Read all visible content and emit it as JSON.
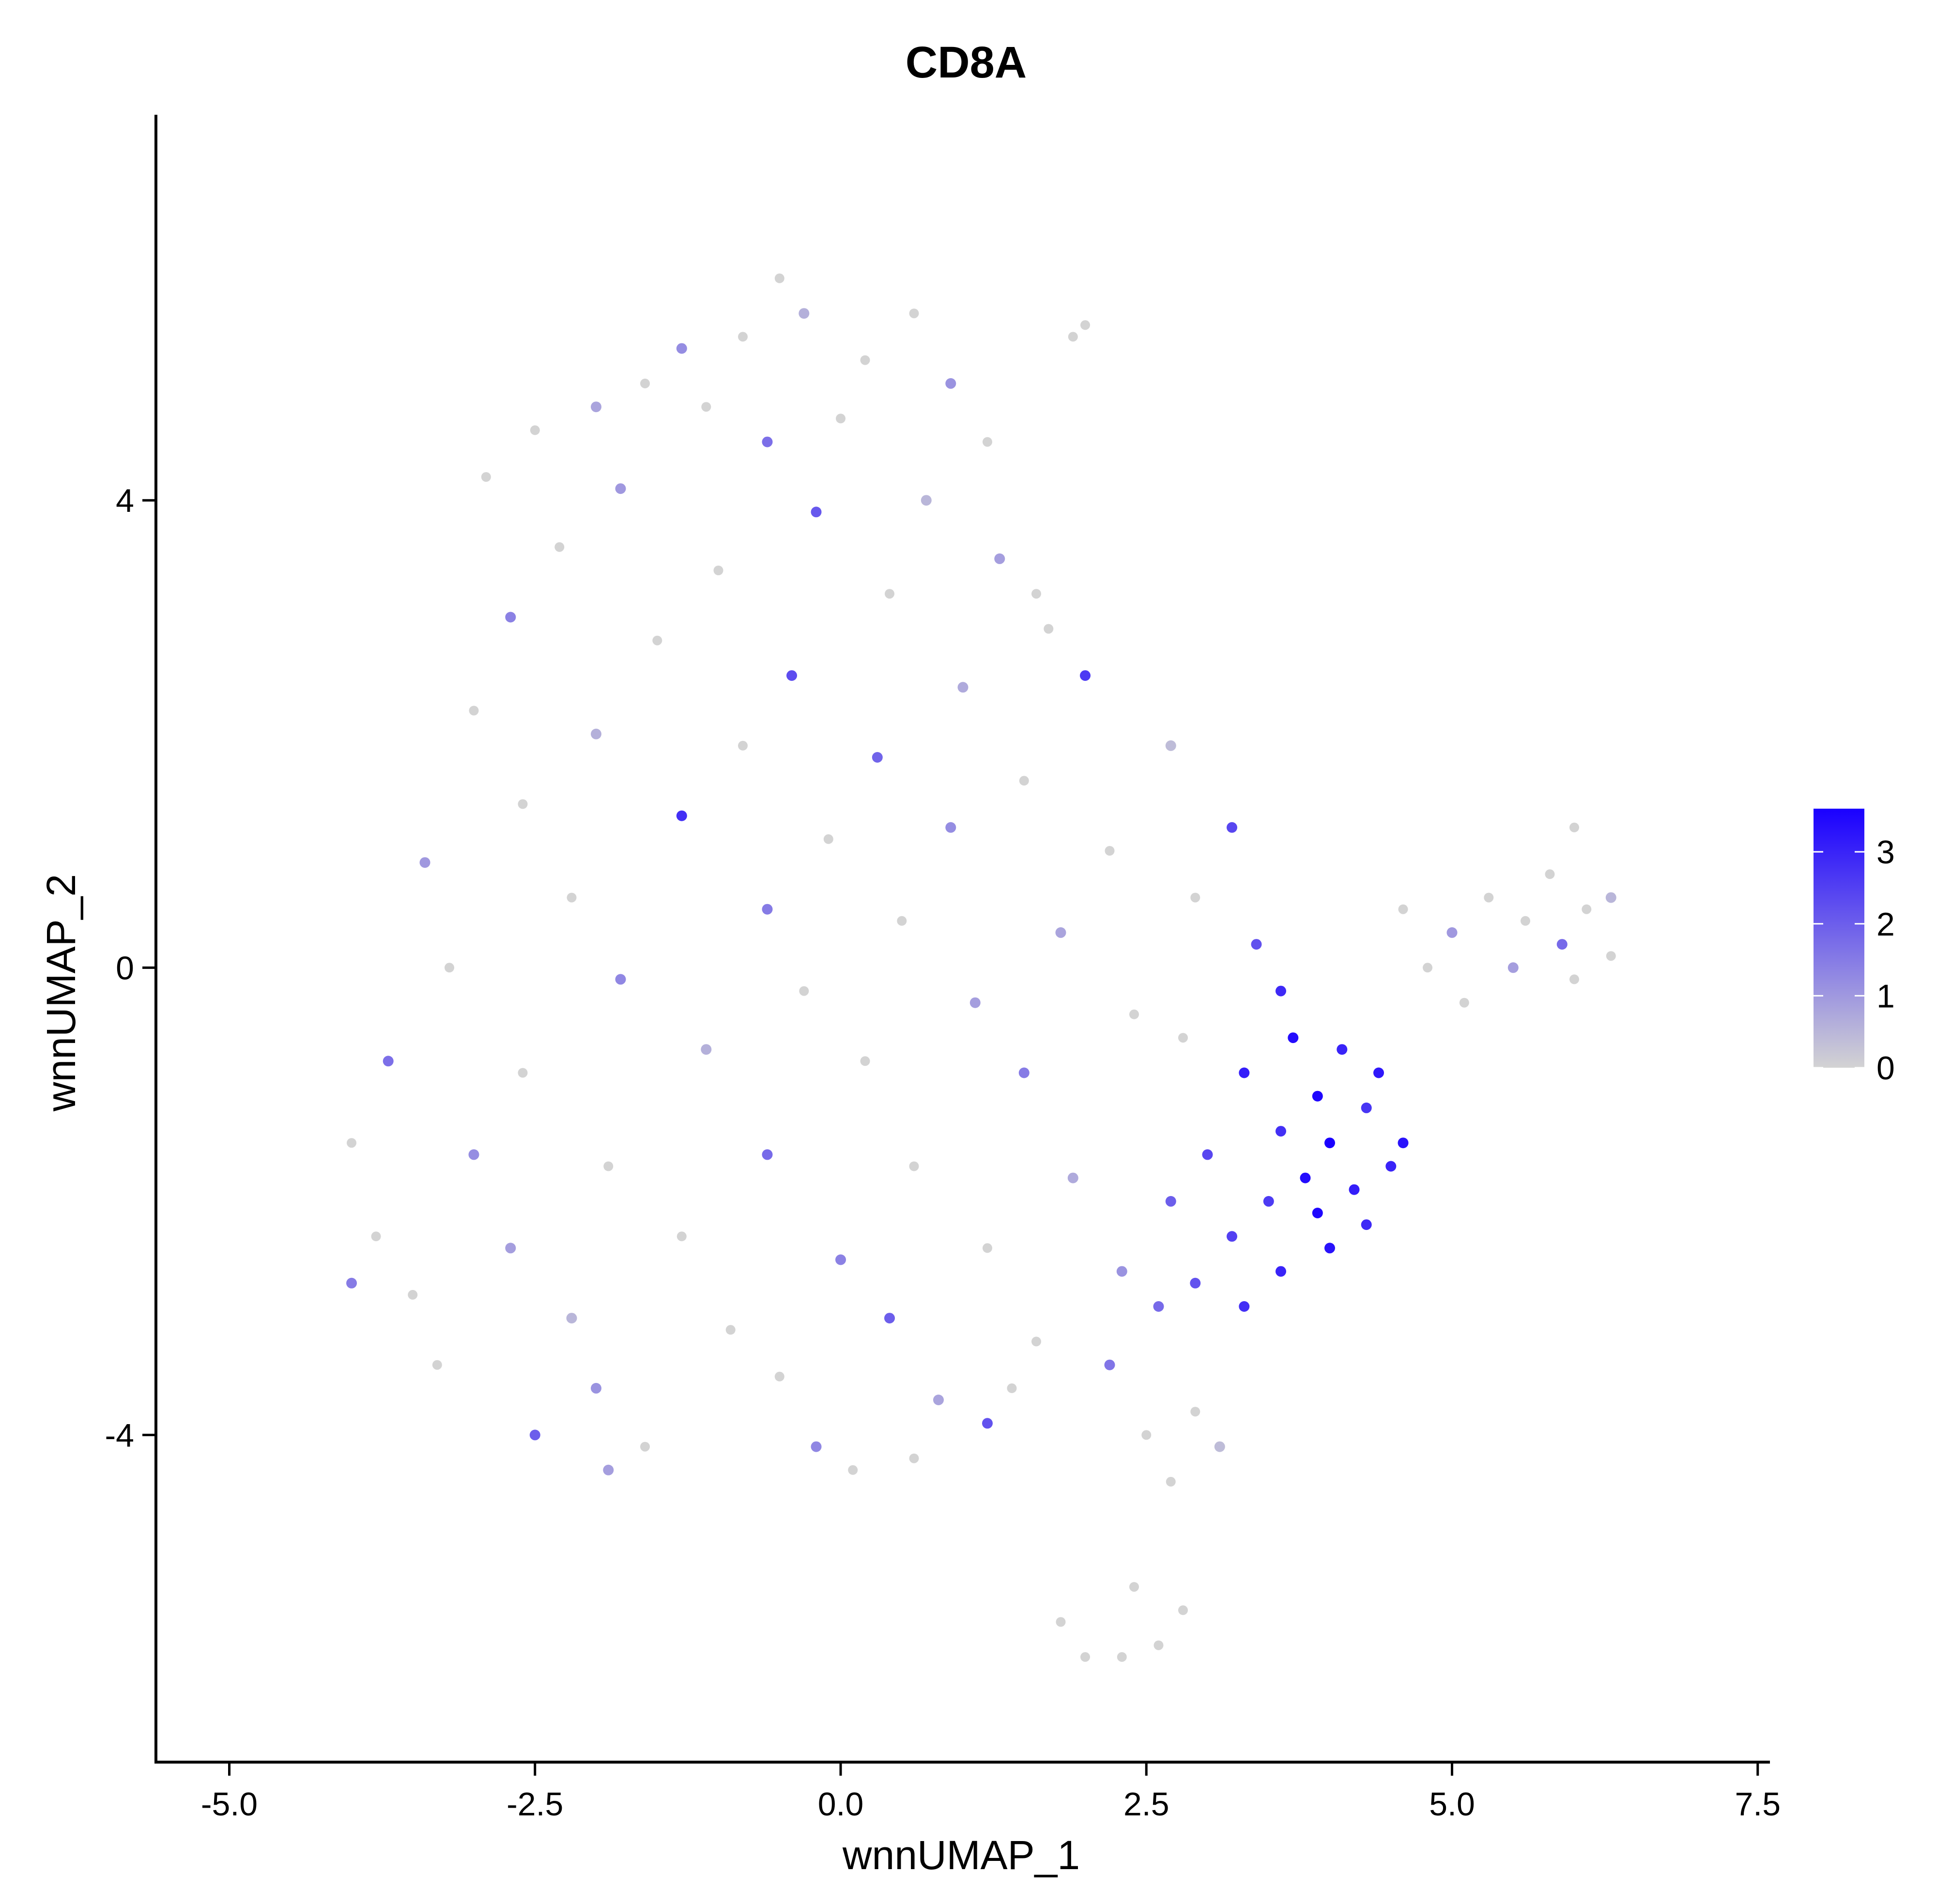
{
  "chart_data": {
    "type": "scatter",
    "title": "CD8A",
    "xlabel": "wnnUMAP_1",
    "ylabel": "wnnUMAP_2",
    "xlim": [
      -5.6,
      7.6
    ],
    "ylim": [
      -6.8,
      7.3
    ],
    "xticks": [
      {
        "value": -5.0,
        "label": "-5.0"
      },
      {
        "value": -2.5,
        "label": "-2.5"
      },
      {
        "value": 0.0,
        "label": "0.0"
      },
      {
        "value": 2.5,
        "label": "2.5"
      },
      {
        "value": 5.0,
        "label": "5.0"
      },
      {
        "value": 7.5,
        "label": "7.5"
      }
    ],
    "yticks": [
      {
        "value": -4,
        "label": "-4"
      },
      {
        "value": 0,
        "label": "0"
      },
      {
        "value": 4,
        "label": "4"
      }
    ],
    "grid": false,
    "color_scale": {
      "low_color": "#d3d3d3",
      "high_color": "#1a00ff",
      "min": 0,
      "max": 3.6,
      "ticks": [
        {
          "value": 0,
          "label": "0"
        },
        {
          "value": 1,
          "label": "1"
        },
        {
          "value": 2,
          "label": "2"
        },
        {
          "value": 3,
          "label": "3"
        }
      ],
      "legend_position": "right"
    },
    "points": [
      [
        -0.5,
        5.9,
        0
      ],
      [
        -0.3,
        5.6,
        0.6
      ],
      [
        -0.8,
        5.4,
        0
      ],
      [
        -1.3,
        5.3,
        1.2
      ],
      [
        0.6,
        5.6,
        0
      ],
      [
        0.2,
        5.2,
        0
      ],
      [
        -1.6,
        5.0,
        0
      ],
      [
        -2.0,
        4.8,
        0.8
      ],
      [
        0.9,
        5.0,
        1.1
      ],
      [
        -1.1,
        4.8,
        0
      ],
      [
        -2.5,
        4.6,
        0
      ],
      [
        -0.6,
        4.5,
        1.7
      ],
      [
        1.2,
        4.5,
        0
      ],
      [
        0.0,
        4.7,
        0
      ],
      [
        -2.9,
        4.2,
        0
      ],
      [
        -1.8,
        4.1,
        1.0
      ],
      [
        0.7,
        4.0,
        0.5
      ],
      [
        -0.2,
        3.9,
        2.1
      ],
      [
        -2.3,
        3.6,
        0
      ],
      [
        -1.0,
        3.4,
        0
      ],
      [
        1.3,
        3.5,
        0.9
      ],
      [
        0.4,
        3.2,
        0
      ],
      [
        -2.7,
        3.0,
        1.4
      ],
      [
        -1.5,
        2.8,
        0
      ],
      [
        -0.4,
        2.5,
        2.3
      ],
      [
        1.7,
        2.9,
        0
      ],
      [
        1.0,
        2.4,
        0.7
      ],
      [
        2.0,
        2.5,
        2.6
      ],
      [
        -3.0,
        2.2,
        0
      ],
      [
        -2.0,
        2.0,
        0.6
      ],
      [
        -0.8,
        1.9,
        0
      ],
      [
        0.3,
        1.8,
        1.9
      ],
      [
        1.5,
        1.6,
        0
      ],
      [
        2.7,
        1.9,
        0.4
      ],
      [
        3.2,
        1.2,
        2.4
      ],
      [
        -2.6,
        1.4,
        0
      ],
      [
        -1.3,
        1.3,
        2.8
      ],
      [
        -0.1,
        1.1,
        0
      ],
      [
        0.9,
        1.2,
        1.2
      ],
      [
        2.2,
        1.0,
        0
      ],
      [
        -3.4,
        0.9,
        1.0
      ],
      [
        -2.2,
        0.6,
        0
      ],
      [
        -0.6,
        0.5,
        1.5
      ],
      [
        0.5,
        0.4,
        0
      ],
      [
        1.8,
        0.3,
        0.8
      ],
      [
        2.9,
        0.6,
        0
      ],
      [
        3.4,
        0.2,
        2.2
      ],
      [
        -3.2,
        0.0,
        0
      ],
      [
        -1.8,
        -0.1,
        1.3
      ],
      [
        -0.3,
        -0.2,
        0
      ],
      [
        1.1,
        -0.3,
        0.9
      ],
      [
        2.4,
        -0.4,
        0
      ],
      [
        3.6,
        -0.2,
        2.9
      ],
      [
        -3.7,
        -0.8,
        1.7
      ],
      [
        -2.6,
        -0.9,
        0
      ],
      [
        -1.1,
        -0.7,
        0.6
      ],
      [
        0.2,
        -0.8,
        0
      ],
      [
        1.5,
        -0.9,
        1.5
      ],
      [
        2.8,
        -0.6,
        0
      ],
      [
        3.3,
        -0.9,
        3.1
      ],
      [
        3.7,
        -0.6,
        3.4
      ],
      [
        4.1,
        -0.7,
        3.0
      ],
      [
        4.4,
        -0.9,
        3.2
      ],
      [
        3.9,
        -1.1,
        3.5
      ],
      [
        4.3,
        -1.2,
        2.7
      ],
      [
        4.6,
        -1.5,
        3.3
      ],
      [
        4.0,
        -1.5,
        3.6
      ],
      [
        3.6,
        -1.4,
        2.8
      ],
      [
        4.5,
        -1.7,
        3.0
      ],
      [
        3.8,
        -1.8,
        3.4
      ],
      [
        4.2,
        -1.9,
        3.1
      ],
      [
        3.5,
        -2.0,
        2.6
      ],
      [
        3.9,
        -2.1,
        3.5
      ],
      [
        4.3,
        -2.2,
        2.9
      ],
      [
        4.0,
        -2.4,
        3.3
      ],
      [
        3.2,
        -2.3,
        2.5
      ],
      [
        3.6,
        -2.6,
        3.0
      ],
      [
        2.9,
        -2.7,
        2.2
      ],
      [
        3.3,
        -2.9,
        2.8
      ],
      [
        2.6,
        -2.9,
        1.8
      ],
      [
        3.0,
        -1.6,
        2.4
      ],
      [
        2.7,
        -2.0,
        2.0
      ],
      [
        -4.0,
        -1.5,
        0
      ],
      [
        -3.0,
        -1.6,
        1.2
      ],
      [
        -1.9,
        -1.7,
        0
      ],
      [
        -0.6,
        -1.6,
        1.8
      ],
      [
        0.6,
        -1.7,
        0
      ],
      [
        1.9,
        -1.8,
        0.7
      ],
      [
        -3.8,
        -2.3,
        0
      ],
      [
        -2.7,
        -2.4,
        0.9
      ],
      [
        -1.3,
        -2.3,
        0
      ],
      [
        0.0,
        -2.5,
        1.4
      ],
      [
        1.2,
        -2.4,
        0
      ],
      [
        2.3,
        -2.6,
        1.1
      ],
      [
        -4.0,
        -2.7,
        1.5
      ],
      [
        -3.5,
        -2.8,
        0
      ],
      [
        -2.2,
        -3.0,
        0.5
      ],
      [
        -0.9,
        -3.1,
        0
      ],
      [
        0.4,
        -3.0,
        2.0
      ],
      [
        1.6,
        -3.2,
        0
      ],
      [
        2.2,
        -3.4,
        1.6
      ],
      [
        -3.3,
        -3.4,
        0
      ],
      [
        -2.0,
        -3.6,
        1.1
      ],
      [
        -0.5,
        -3.5,
        0
      ],
      [
        0.8,
        -3.7,
        0.8
      ],
      [
        1.4,
        -3.6,
        0
      ],
      [
        -2.5,
        -4.0,
        2.0
      ],
      [
        -1.6,
        -4.1,
        0
      ],
      [
        -0.2,
        -4.1,
        1.3
      ],
      [
        0.6,
        -4.2,
        0
      ],
      [
        1.2,
        -3.9,
        2.2
      ],
      [
        -1.9,
        -4.3,
        0.9
      ],
      [
        0.1,
        -4.3,
        0
      ],
      [
        2.5,
        -4.0,
        0
      ],
      [
        2.9,
        -3.8,
        0
      ],
      [
        3.1,
        -4.1,
        0.4
      ],
      [
        2.7,
        -4.4,
        0
      ],
      [
        2.4,
        -5.3,
        0
      ],
      [
        2.8,
        -5.5,
        0
      ],
      [
        2.0,
        -5.9,
        0
      ],
      [
        2.3,
        -5.9,
        0
      ],
      [
        2.6,
        -5.8,
        0
      ],
      [
        1.8,
        -5.6,
        0
      ],
      [
        1.9,
        5.4,
        0
      ],
      [
        2.0,
        5.5,
        0
      ],
      [
        4.6,
        0.5,
        0
      ],
      [
        5.0,
        0.3,
        1.0
      ],
      [
        5.3,
        0.6,
        0
      ],
      [
        5.6,
        0.4,
        0
      ],
      [
        5.9,
        0.2,
        1.8
      ],
      [
        6.1,
        0.5,
        0
      ],
      [
        6.3,
        0.1,
        0
      ],
      [
        6.0,
        -0.1,
        0
      ],
      [
        6.3,
        0.6,
        0.5
      ],
      [
        5.8,
        0.8,
        0
      ],
      [
        6.0,
        1.2,
        0
      ],
      [
        5.5,
        0.0,
        0.9
      ],
      [
        5.1,
        -0.3,
        0
      ],
      [
        4.8,
        0.0,
        0
      ],
      [
        1.6,
        3.2,
        0
      ]
    ]
  }
}
